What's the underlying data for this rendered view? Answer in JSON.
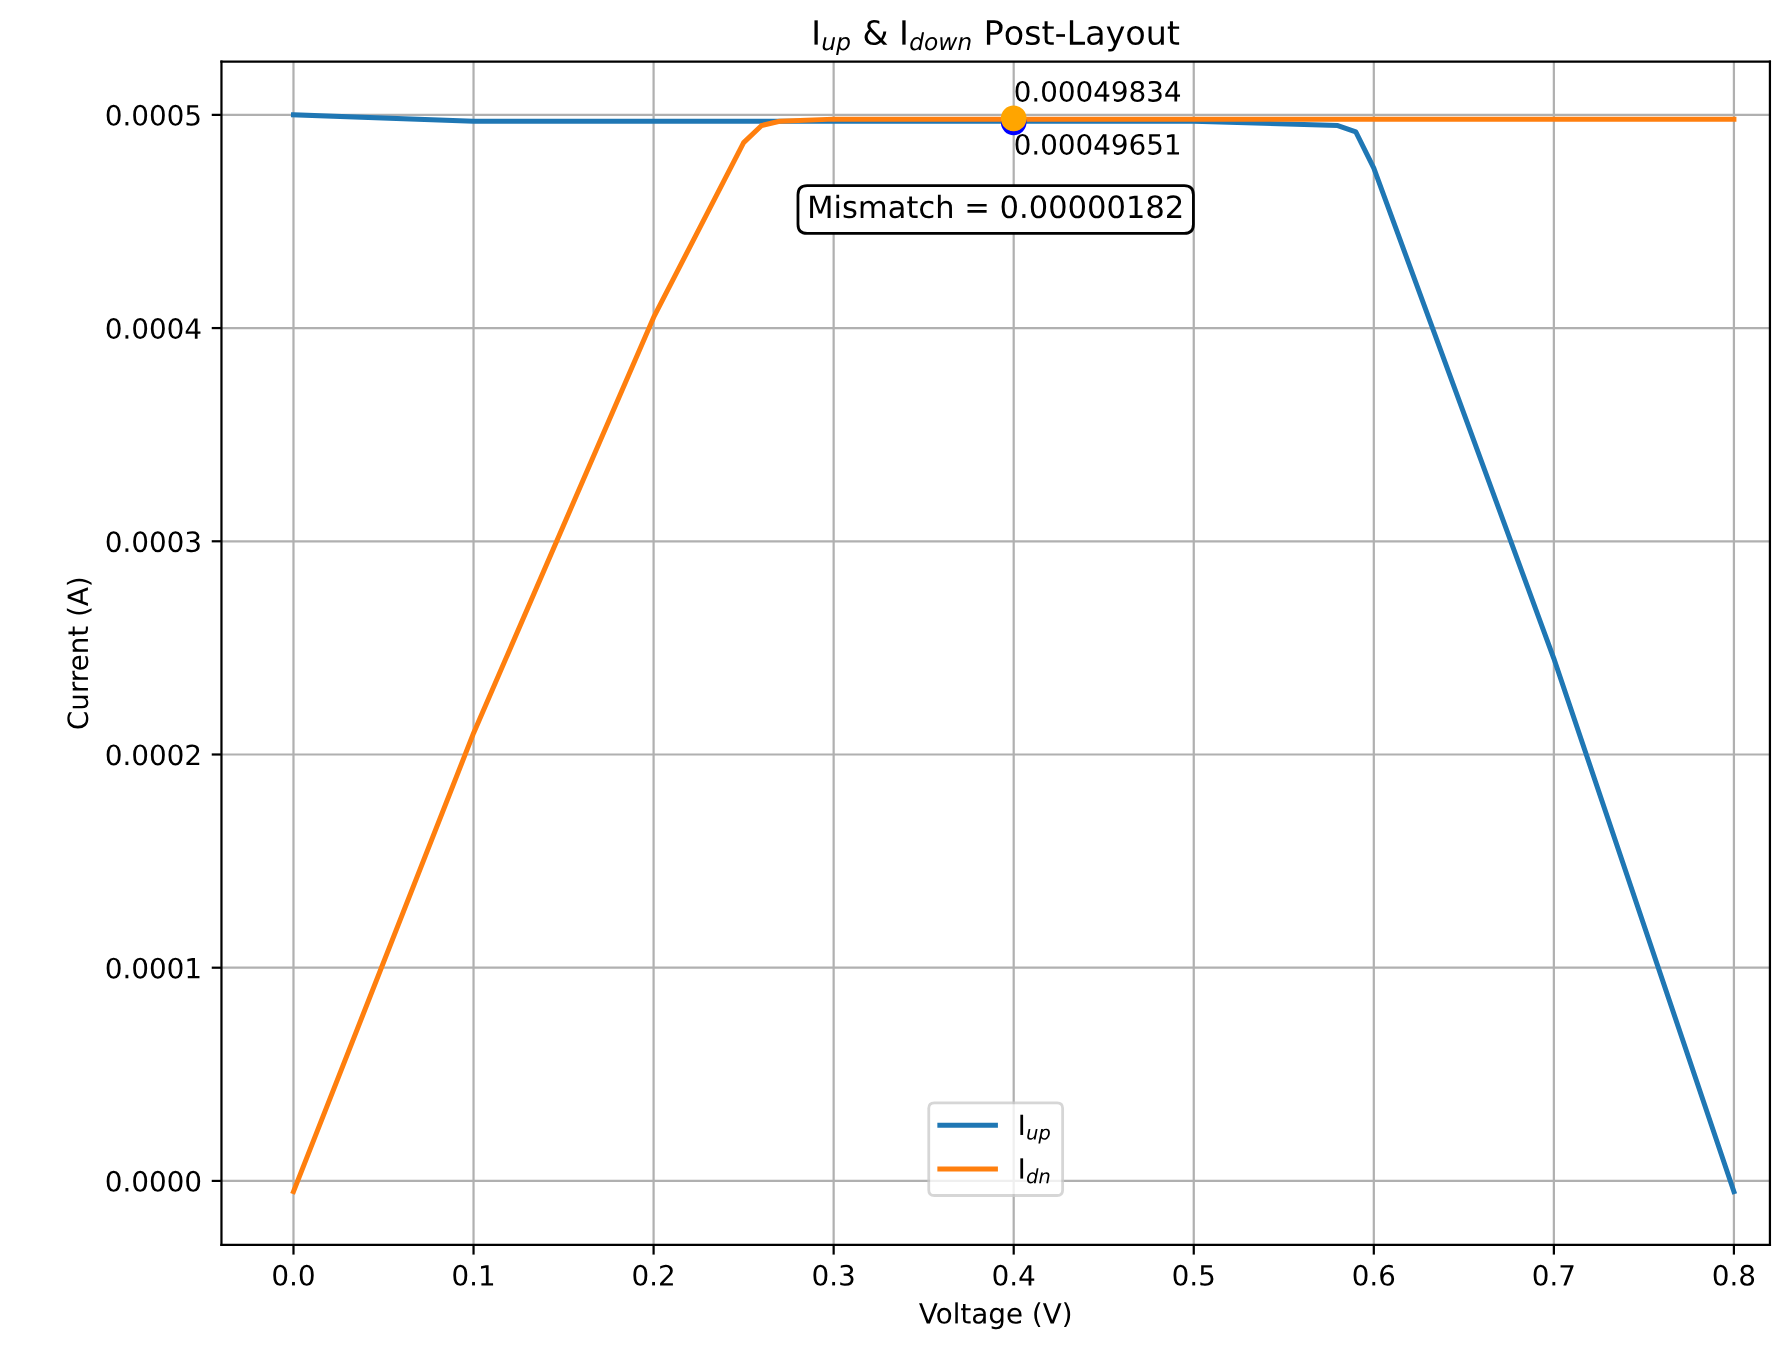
{
  "chart_data": {
    "type": "line",
    "title": "I$_{up}$ & I$_{down}$ Post-Layout",
    "xlabel": "Voltage (V)",
    "ylabel": "Current (A)",
    "series": [
      {
        "name": "I$_{up}$",
        "color": "#1f77b4",
        "x": [
          0.0,
          0.1,
          0.2,
          0.3,
          0.4,
          0.5,
          0.58,
          0.59,
          0.6,
          0.7,
          0.8
        ],
        "values": [
          0.0005,
          0.000497,
          0.000497,
          0.000497,
          0.000497,
          0.000497,
          0.000495,
          0.000492,
          0.000475,
          0.000245,
          -5e-06
        ]
      },
      {
        "name": "I$_{dn}$",
        "color": "#ff7f0e",
        "x": [
          0.0,
          0.1,
          0.2,
          0.25,
          0.26,
          0.27,
          0.3,
          0.4,
          0.5,
          0.6,
          0.7,
          0.8
        ],
        "values": [
          -5e-06,
          0.00021,
          0.000405,
          0.000487,
          0.000495,
          0.000497,
          0.000498,
          0.000498,
          0.000498,
          0.000498,
          0.000498,
          0.000498
        ]
      },
      {
        "type": "scatter",
        "marker": "circle",
        "color": "#0000ff",
        "x": [
          0.4
        ],
        "values": [
          0.00049651
        ]
      },
      {
        "type": "scatter",
        "marker": "circle",
        "color": "#ffa500",
        "x": [
          0.4
        ],
        "values": [
          0.00049834
        ]
      }
    ],
    "annotations": [
      {
        "text": "0.00049834",
        "x": 0.4,
        "y": 0.00049834
      },
      {
        "text": "0.00049651",
        "x": 0.4,
        "y": 0.00049651
      },
      "Mismatch = 0.00000182"
    ],
    "xlim": [
      -0.04,
      0.82
    ],
    "ylim": [
      -3e-05,
      0.000525
    ],
    "xticks": [
      {
        "value": 0,
        "label": "0.0"
      },
      0.1,
      0.2,
      0.3,
      0.4,
      0.5,
      0.6,
      0.7,
      0.8
    ],
    "yticks": [
      {
        "value": 0,
        "label": "0.0000"
      },
      {
        "value": 0.0001,
        "label": "0.0001"
      },
      {
        "value": 0.0002,
        "label": "0.0002"
      },
      {
        "value": 0.0003,
        "label": "0.0003"
      },
      {
        "value": 0.0004,
        "label": "0.0004"
      },
      {
        "value": 0.0005,
        "label": "0.0005"
      }
    ],
    "grid": true,
    "legend": "bottom",
    "line_style": "solid"
  }
}
